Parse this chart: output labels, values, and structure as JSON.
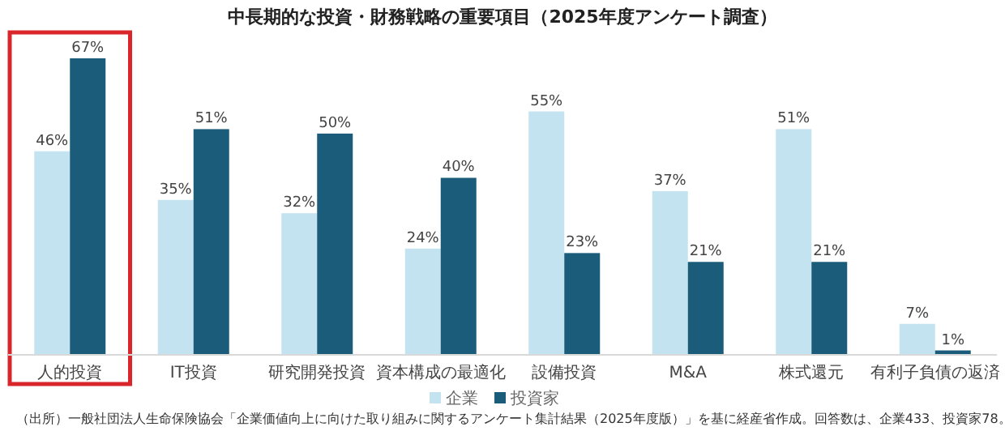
{
  "chart_data": {
    "type": "bar",
    "title": "中長期的な投資・財務戦略の重要項目（2025年度アンケート調査）",
    "categories": [
      "人的投資",
      "IT投資",
      "研究開発投資",
      "資本構成の最適化",
      "設備投資",
      "M&A",
      "株式還元",
      "有利子負債の返済"
    ],
    "series": [
      {
        "name": "企業",
        "color": "#c3e3f1",
        "values": [
          46,
          35,
          32,
          24,
          55,
          37,
          51,
          7
        ],
        "value_labels": [
          "46%",
          "35%",
          "32%",
          "24%",
          "55%",
          "37%",
          "51%",
          "7%"
        ]
      },
      {
        "name": "投資家",
        "color": "#1b5c7a",
        "values": [
          67,
          51,
          50,
          40,
          23,
          21,
          21,
          1
        ],
        "value_labels": [
          "67%",
          "51%",
          "50%",
          "40%",
          "23%",
          "21%",
          "21%",
          "1%"
        ]
      }
    ],
    "legend": "bottom",
    "annotations": [
      "（出所）一般社団法人生命保険協会「企業価値向上に向けた取り組みに関するアンケート集計結果（2025年度版）」を基に経産省作成。回答数は、企業433、投資家78。"
    ]
  }
}
